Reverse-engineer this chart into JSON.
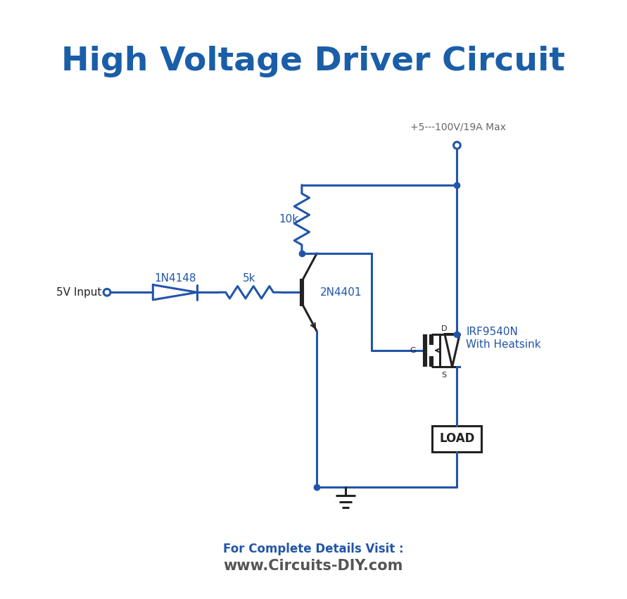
{
  "title": "High Voltage Driver Circuit",
  "title_color": "#1a5ea8",
  "title_fontsize": 34,
  "circuit_color": "#2255aa",
  "circuit_lw": 2.2,
  "text_color_blue": "#2255aa",
  "text_color_dark": "#333333",
  "bg_color": "#ffffff",
  "footer_text1": "For Complete Details Visit :",
  "footer_text2": "www.Circuits-DIY.com",
  "footer_color1": "#2255aa",
  "footer_color2": "#555555",
  "label_5v": "5V Input",
  "label_diode": "1N4148",
  "label_res5k": "5k",
  "label_bjt": "2N4401",
  "label_res10k": "10k",
  "label_mosfet": "IRF9540N",
  "label_heatsink": "With Heatsink",
  "label_load": "LOAD",
  "label_supply": "+5---100V/19A Max",
  "label_D": "D",
  "label_G": "G",
  "label_S": "S"
}
